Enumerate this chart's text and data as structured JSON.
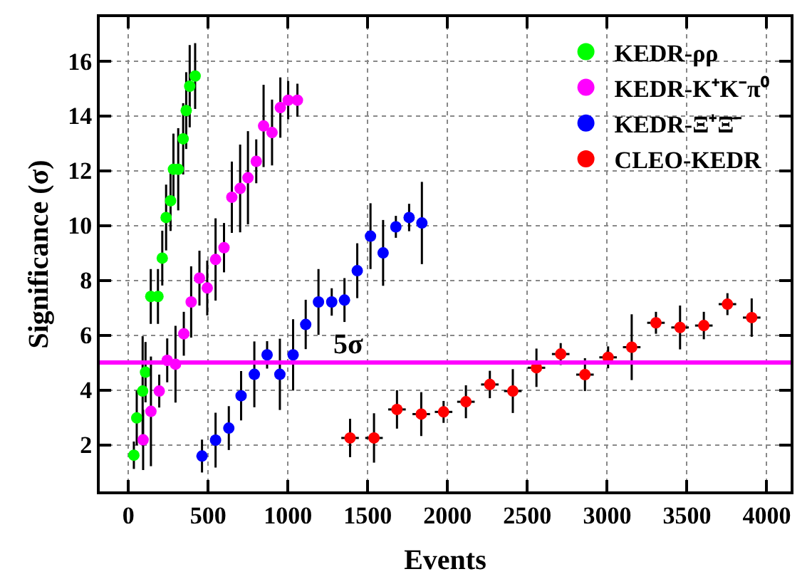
{
  "chart_data": {
    "type": "scatter",
    "xlabel": "Events",
    "ylabel": "Significance (σ)",
    "xlim": [
      -180,
      4150
    ],
    "ylim": [
      0.3,
      17.6
    ],
    "xticks": [
      0,
      500,
      1000,
      1500,
      2000,
      2500,
      3000,
      3500,
      4000
    ],
    "yticks": [
      2,
      4,
      6,
      8,
      10,
      12,
      14,
      16
    ],
    "grid": true,
    "legend": "top right",
    "marker": "circle",
    "ref_lines": [
      {
        "axis": "y",
        "value": 5,
        "label": "5σ",
        "color": "#ff00ff"
      }
    ],
    "series": [
      {
        "name": "KEDR-ρρ",
        "color": "#00ff00",
        "x": [
          34,
          52,
          89,
          107,
          140,
          185,
          212,
          236,
          264,
          282,
          312,
          343,
          362,
          384,
          418
        ],
        "values": [
          1.62,
          2.98,
          3.96,
          4.65,
          7.41,
          7.41,
          8.81,
          10.29,
          10.9,
          12.05,
          12.05,
          13.16,
          14.19,
          15.08,
          15.45
        ],
        "errors": [
          0.5,
          1.0,
          2.0,
          1.1,
          1.0,
          1.0,
          1.0,
          1.2,
          1.1,
          1.3,
          1.5,
          1.3,
          1.4,
          1.5,
          1.2
        ]
      },
      {
        "name": "KEDR-K⁺K⁻π⁰",
        "color": "#ff00ff",
        "x": [
          92,
          141,
          193,
          243,
          295,
          347,
          393,
          445,
          494,
          546,
          599,
          648,
          700,
          749,
          801,
          847,
          900,
          952,
          1001,
          1059
        ],
        "values": [
          2.18,
          3.22,
          3.96,
          5.08,
          4.94,
          6.05,
          7.21,
          8.08,
          7.72,
          8.76,
          9.19,
          11.03,
          11.35,
          11.74,
          12.34,
          13.63,
          13.39,
          14.3,
          14.57,
          14.57
        ],
        "errors": [
          1.1,
          2.0,
          0.6,
          0.8,
          1.4,
          0.8,
          1.3,
          1.0,
          1.0,
          1.5,
          0.9,
          1.3,
          1.6,
          1.7,
          0.8,
          1.5,
          1.2,
          1.1,
          0.7,
          0.6
        ]
      },
      {
        "name": "KEDR-Ξ⁺Ξ̄⁻",
        "color": "#0000ff",
        "x": [
          461,
          546,
          629,
          706,
          789,
          869,
          949,
          1032,
          1111,
          1191,
          1274,
          1354,
          1434,
          1517,
          1596,
          1676,
          1759,
          1839
        ],
        "values": [
          1.59,
          2.17,
          2.61,
          3.79,
          4.57,
          5.28,
          4.57,
          5.28,
          6.39,
          7.21,
          7.21,
          7.28,
          8.35,
          9.61,
          9.0,
          9.95,
          10.29,
          10.09
        ],
        "errors": [
          0.6,
          1.0,
          0.8,
          0.9,
          1.2,
          0.5,
          1.3,
          1.3,
          0.9,
          1.2,
          0.5,
          0.8,
          1.0,
          1.2,
          1.2,
          0.4,
          0.5,
          1.5
        ]
      },
      {
        "name": "CLEO-KEDR",
        "color": "#ff0000",
        "x": [
          1389,
          1539,
          1683,
          1835,
          1975,
          2115,
          2265,
          2409,
          2557,
          2709,
          2861,
          3006,
          3154,
          3306,
          3457,
          3606,
          3754,
          3906
        ],
        "values": [
          2.25,
          2.25,
          3.29,
          3.12,
          3.2,
          3.57,
          4.2,
          3.96,
          4.81,
          5.31,
          4.56,
          5.19,
          5.56,
          6.45,
          6.28,
          6.35,
          7.13,
          6.64
        ],
        "errors": [
          0.7,
          0.9,
          0.7,
          0.8,
          0.4,
          0.6,
          0.5,
          0.8,
          0.7,
          0.4,
          0.6,
          0.4,
          1.2,
          0.4,
          0.8,
          0.5,
          0.4,
          0.7
        ],
        "xerrors": [
          55,
          55,
          55,
          55,
          55,
          55,
          55,
          55,
          55,
          55,
          55,
          55,
          55,
          55,
          55,
          55,
          55,
          55
        ]
      }
    ]
  }
}
